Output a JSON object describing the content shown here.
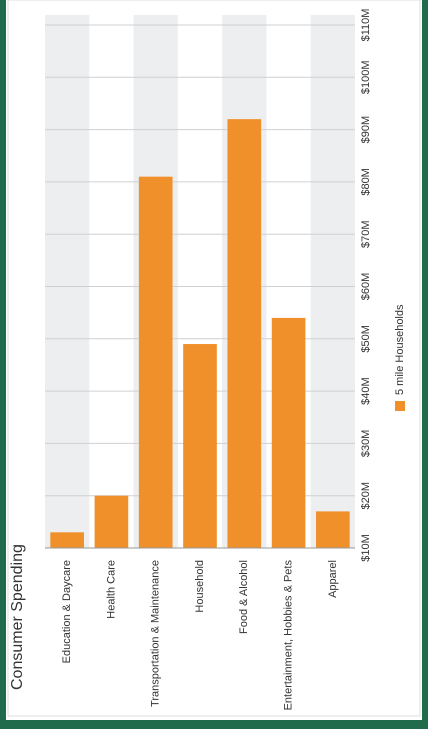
{
  "chart_data": {
    "type": "bar",
    "title": "Consumer Spending",
    "categories": [
      "Education & Daycare",
      "Health Care",
      "Transportation & Maintenance",
      "Household",
      "Food & Alcohol",
      "Entertainment, Hobbies & Pets",
      "Apparel"
    ],
    "series": [
      {
        "name": "5 mile Households",
        "color": "#f0902a",
        "values": [
          13,
          20,
          81,
          49,
          92,
          54,
          17
        ]
      }
    ],
    "ylim": [
      10,
      110
    ],
    "yticks": [
      {
        "value": 10,
        "label": "$10M"
      },
      {
        "value": 20,
        "label": "$20M"
      },
      {
        "value": 30,
        "label": "$30M"
      },
      {
        "value": 40,
        "label": "$40M"
      },
      {
        "value": 50,
        "label": "$50M"
      },
      {
        "value": 60,
        "label": "$60M"
      },
      {
        "value": 70,
        "label": "$70M"
      },
      {
        "value": 80,
        "label": "$80M"
      },
      {
        "value": 90,
        "label": "$90M"
      },
      {
        "value": 100,
        "label": "$100M"
      },
      {
        "value": 110,
        "label": "$110M"
      }
    ],
    "grid": true
  }
}
